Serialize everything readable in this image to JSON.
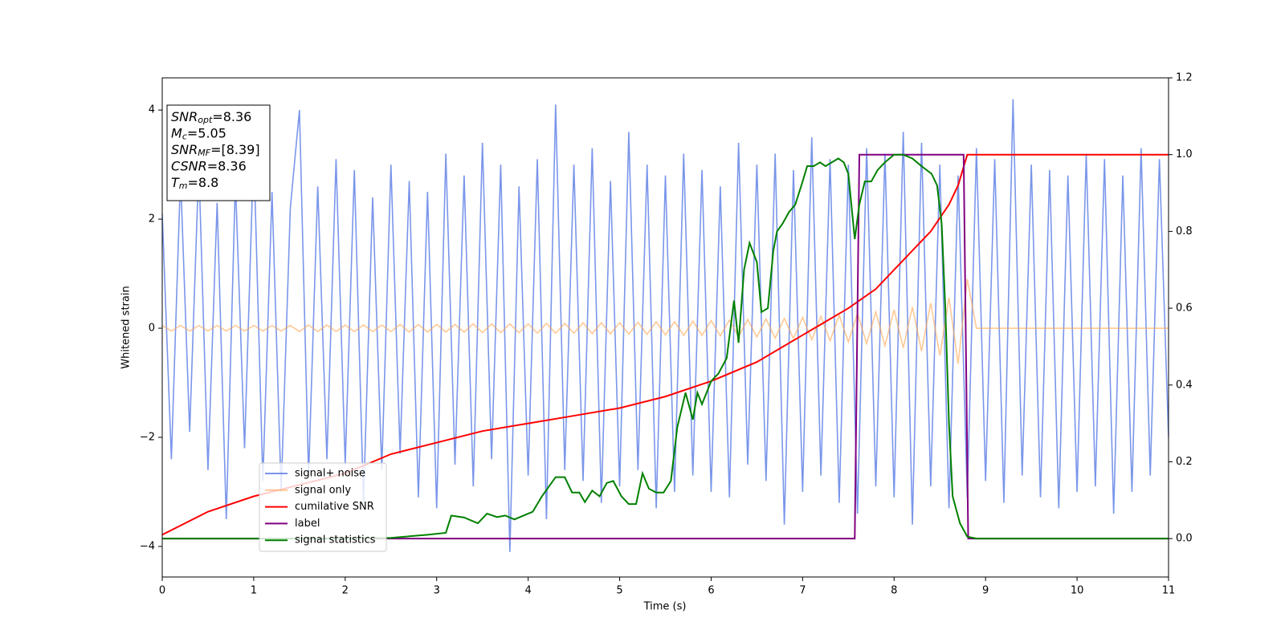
{
  "chart_data": {
    "type": "line",
    "xlabel": "Time (s)",
    "ylabel": "Whitened strain",
    "xlim": [
      0,
      11
    ],
    "xticks": [
      0,
      1,
      2,
      3,
      4,
      5,
      6,
      7,
      8,
      9,
      10,
      11
    ],
    "ylim": [
      -4.56,
      4.59
    ],
    "yticks": [
      {
        "value": -4,
        "label": "−4"
      },
      {
        "value": -2,
        "label": "−2"
      },
      0,
      2,
      4
    ],
    "y2lim": [
      -0.1,
      1.2
    ],
    "y2ticks": [
      {
        "value": 0,
        "label": "0.0"
      },
      0.2,
      0.4,
      0.6,
      0.8,
      {
        "value": 1,
        "label": "1.0"
      },
      1.2
    ],
    "legend": "best",
    "annotations": [
      {
        "base": "SNR",
        "sub": "opt",
        "rest": "=8.36"
      },
      {
        "base": "M",
        "sub": "c",
        "rest": "=5.05"
      },
      {
        "base": "SNR",
        "sub": "MF",
        "rest": "=[8.39]"
      },
      {
        "base": "CSNR",
        "rest": "=8.36"
      },
      {
        "base": "T",
        "sub": "m",
        "rest": "=8.8"
      }
    ],
    "series": [
      {
        "name": "signal+ noise",
        "color": "#4169e1",
        "alpha": 0.7,
        "x": [
          0,
          0.1,
          0.2,
          0.3,
          0.4,
          0.5,
          0.6,
          0.7,
          0.8,
          0.9,
          1,
          1.1,
          1.2,
          1.3,
          1.4,
          1.5,
          1.6,
          1.7,
          1.8,
          1.9,
          2,
          2.1,
          2.2,
          2.3,
          2.4,
          2.5,
          2.6,
          2.7,
          2.8,
          2.9,
          3,
          3.1,
          3.2,
          3.3,
          3.4,
          3.5,
          3.6,
          3.7,
          3.8,
          3.9,
          4,
          4.1,
          4.2,
          4.3,
          4.4,
          4.5,
          4.6,
          4.7,
          4.8,
          4.9,
          5,
          5.1,
          5.2,
          5.3,
          5.4,
          5.5,
          5.6,
          5.7,
          5.8,
          5.9,
          6,
          6.1,
          6.2,
          6.3,
          6.4,
          6.5,
          6.6,
          6.7,
          6.8,
          6.9,
          7,
          7.1,
          7.2,
          7.3,
          7.4,
          7.5,
          7.6,
          7.7,
          7.8,
          7.9,
          8,
          8.1,
          8.2,
          8.3,
          8.4,
          8.5,
          8.6,
          8.7,
          8.8,
          8.9,
          9,
          9.1,
          9.2,
          9.3,
          9.4,
          9.5,
          9.6,
          9.7,
          9.8,
          9.9,
          10,
          10.1,
          10.2,
          10.3,
          10.4,
          10.5,
          10.6,
          10.7,
          10.8,
          10.9,
          11
        ],
        "values": [
          2.1,
          -2.4,
          2.8,
          -1.9,
          3.0,
          -2.6,
          2.3,
          -3.5,
          2.7,
          -2.2,
          3.3,
          -2.8,
          2.5,
          -3.0,
          2.2,
          4.0,
          -2.7,
          2.6,
          -2.4,
          3.1,
          -2.5,
          2.9,
          -3.2,
          2.4,
          -2.6,
          3.0,
          -2.3,
          2.7,
          -3.1,
          2.5,
          -3.3,
          3.2,
          -2.5,
          2.8,
          -2.9,
          3.4,
          -2.4,
          3.0,
          -4.1,
          2.6,
          -2.7,
          3.1,
          -3.5,
          4.1,
          -2.6,
          3.0,
          -2.8,
          3.3,
          -3.2,
          2.7,
          -2.9,
          3.6,
          -2.6,
          3.0,
          -3.3,
          2.8,
          -3.0,
          3.2,
          -2.7,
          2.9,
          -3.0,
          2.6,
          -3.1,
          3.4,
          -2.5,
          3.0,
          -2.8,
          3.2,
          -3.6,
          2.9,
          -3.0,
          3.5,
          -2.7,
          3.1,
          -3.2,
          3.0,
          -3.4,
          3.3,
          -2.9,
          3.2,
          -3.1,
          3.6,
          -3.6,
          3.4,
          -2.9,
          3.0,
          -3.3,
          2.8,
          -3.1,
          3.3,
          -2.8,
          3.1,
          -3.2,
          4.2,
          -2.7,
          3.0,
          -3.1,
          2.9,
          -3.3,
          2.8,
          -3.0,
          3.2,
          -2.9,
          3.1,
          -3.4,
          2.8,
          -3.0,
          3.3,
          -2.7,
          3.1,
          -2.0
        ]
      },
      {
        "name": "signal only",
        "color": "#ffa550",
        "alpha": 0.6,
        "x": [
          0,
          0.1,
          0.2,
          0.3,
          0.4,
          0.5,
          0.6,
          0.7,
          0.8,
          0.9,
          1,
          1.1,
          1.2,
          1.3,
          1.4,
          1.5,
          1.6,
          1.7,
          1.8,
          1.9,
          2,
          2.1,
          2.2,
          2.3,
          2.4,
          2.5,
          2.6,
          2.7,
          2.8,
          2.9,
          3,
          3.1,
          3.2,
          3.3,
          3.4,
          3.5,
          3.6,
          3.7,
          3.8,
          3.9,
          4,
          4.1,
          4.2,
          4.3,
          4.4,
          4.5,
          4.6,
          4.7,
          4.8,
          4.9,
          5,
          5.1,
          5.2,
          5.3,
          5.4,
          5.5,
          5.6,
          5.7,
          5.8,
          5.9,
          6,
          6.1,
          6.2,
          6.3,
          6.4,
          6.5,
          6.6,
          6.7,
          6.8,
          6.9,
          7,
          7.1,
          7.2,
          7.3,
          7.4,
          7.5,
          7.6,
          7.7,
          7.8,
          7.9,
          8,
          8.1,
          8.2,
          8.3,
          8.4,
          8.5,
          8.6,
          8.7,
          8.8,
          8.9,
          9,
          9.1,
          9.2,
          9.3,
          9.4,
          9.5,
          9.6,
          9.7,
          9.8,
          9.9,
          10,
          10.1,
          10.2,
          10.3,
          10.4,
          10.5,
          10.6,
          10.7,
          10.8,
          10.9,
          11
        ],
        "values": [
          0.05,
          -0.05,
          0.05,
          -0.05,
          0.05,
          -0.05,
          0.05,
          -0.05,
          0.05,
          -0.05,
          0.05,
          -0.05,
          0.05,
          -0.05,
          0.05,
          -0.06,
          0.06,
          -0.06,
          0.06,
          -0.06,
          0.06,
          -0.06,
          0.06,
          -0.06,
          0.06,
          -0.06,
          0.07,
          -0.07,
          0.07,
          -0.07,
          0.07,
          -0.07,
          0.07,
          -0.07,
          0.08,
          -0.08,
          0.08,
          -0.08,
          0.08,
          -0.08,
          0.08,
          -0.09,
          0.09,
          -0.09,
          0.09,
          -0.09,
          0.1,
          -0.1,
          0.1,
          -0.1,
          0.1,
          -0.11,
          0.11,
          -0.11,
          0.12,
          -0.12,
          0.12,
          -0.13,
          0.13,
          -0.13,
          0.14,
          -0.14,
          0.15,
          -0.15,
          0.16,
          -0.16,
          0.17,
          -0.18,
          0.18,
          -0.19,
          0.2,
          -0.21,
          0.22,
          -0.23,
          0.24,
          -0.25,
          0.27,
          -0.28,
          0.3,
          -0.32,
          0.34,
          -0.36,
          0.39,
          -0.42,
          0.46,
          -0.5,
          0.56,
          -0.65,
          0.9,
          0,
          0,
          0,
          0,
          0,
          0,
          0,
          0,
          0,
          0,
          0,
          0,
          0,
          0,
          0,
          0,
          0,
          0,
          0,
          0,
          0,
          0
        ]
      },
      {
        "name": "cumilative SNR",
        "color": "#ff0000",
        "alpha": 1,
        "axis": "y2",
        "x": [
          0,
          0.5,
          1,
          1.5,
          2,
          2.5,
          3,
          3.5,
          4,
          4.5,
          5,
          5.5,
          6,
          6.5,
          7,
          7.5,
          7.8,
          8,
          8.2,
          8.4,
          8.6,
          8.7,
          8.75,
          8.8,
          9,
          10,
          11
        ],
        "values": [
          0.01,
          0.07,
          0.11,
          0.14,
          0.17,
          0.22,
          0.25,
          0.28,
          0.3,
          0.32,
          0.34,
          0.37,
          0.41,
          0.46,
          0.53,
          0.6,
          0.65,
          0.7,
          0.75,
          0.8,
          0.87,
          0.92,
          0.96,
          1.0,
          1.0,
          1.0,
          1.0
        ]
      },
      {
        "name": "label",
        "color": "#800080",
        "alpha": 1,
        "axis": "y2",
        "x": [
          0,
          7.57,
          7.62,
          8.76,
          8.81,
          11
        ],
        "values": [
          0,
          0,
          1,
          1,
          0,
          0
        ]
      },
      {
        "name": "signal statistics",
        "color": "#008000",
        "alpha": 1,
        "axis": "y2",
        "x": [
          0,
          1,
          2,
          2.5,
          2.9,
          3.1,
          3.16,
          3.3,
          3.45,
          3.55,
          3.66,
          3.75,
          3.85,
          3.95,
          4.05,
          4.15,
          4.3,
          4.4,
          4.48,
          4.56,
          4.62,
          4.7,
          4.78,
          4.86,
          4.93,
          5.02,
          5.1,
          5.18,
          5.25,
          5.32,
          5.4,
          5.48,
          5.56,
          5.63,
          5.72,
          5.8,
          5.85,
          5.9,
          6.0,
          6.08,
          6.17,
          6.25,
          6.3,
          6.36,
          6.42,
          6.5,
          6.55,
          6.62,
          6.68,
          6.72,
          6.78,
          6.85,
          6.92,
          7.0,
          7.05,
          7.12,
          7.19,
          7.25,
          7.32,
          7.39,
          7.45,
          7.5,
          7.57,
          7.62,
          7.68,
          7.75,
          7.82,
          7.9,
          8.0,
          8.1,
          8.2,
          8.3,
          8.41,
          8.47,
          8.52,
          8.56,
          8.6,
          8.64,
          8.72,
          8.8,
          8.9,
          11
        ],
        "values": [
          0,
          0,
          0,
          0.002,
          0.01,
          0.015,
          0.06,
          0.055,
          0.04,
          0.065,
          0.056,
          0.06,
          0.05,
          0.06,
          0.07,
          0.11,
          0.16,
          0.16,
          0.12,
          0.12,
          0.095,
          0.125,
          0.11,
          0.145,
          0.15,
          0.11,
          0.09,
          0.09,
          0.17,
          0.13,
          0.12,
          0.12,
          0.15,
          0.29,
          0.38,
          0.31,
          0.38,
          0.35,
          0.41,
          0.43,
          0.47,
          0.62,
          0.51,
          0.7,
          0.77,
          0.72,
          0.59,
          0.6,
          0.75,
          0.8,
          0.82,
          0.85,
          0.87,
          0.93,
          0.97,
          0.97,
          0.98,
          0.97,
          0.98,
          0.99,
          0.98,
          0.95,
          0.78,
          0.87,
          0.93,
          0.93,
          0.96,
          0.98,
          1.0,
          1.0,
          0.99,
          0.97,
          0.95,
          0.92,
          0.82,
          0.6,
          0.3,
          0.11,
          0.04,
          0.005,
          0,
          0
        ]
      }
    ]
  }
}
